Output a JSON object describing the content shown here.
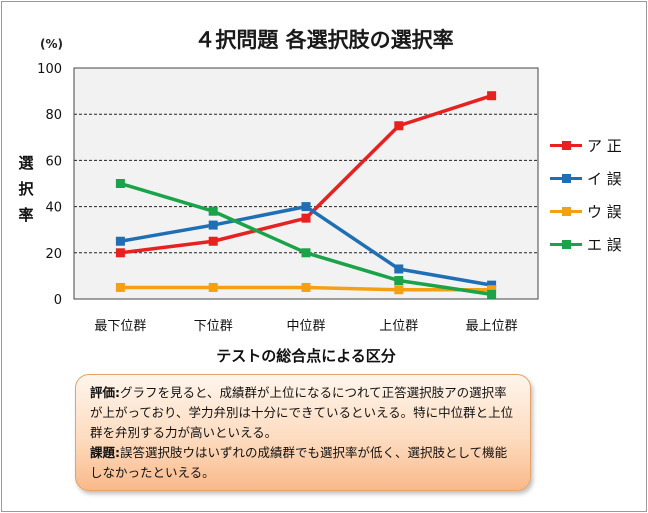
{
  "chart_data": {
    "type": "line",
    "title": "４択問題 各選択肢の選択率",
    "y_unit": "(%)",
    "ylabel": "選択率",
    "xlabel": "テストの総合点による区分",
    "categories": [
      "最下位群",
      "下位群",
      "中位群",
      "上位群",
      "最上位群"
    ],
    "ylim": [
      0,
      100
    ],
    "yticks": [
      0,
      20,
      40,
      60,
      80,
      100
    ],
    "grid": true,
    "legend_position": "right",
    "series": [
      {
        "name": "ア 正",
        "color": "#e8201f",
        "values": [
          20,
          25,
          35,
          75,
          88
        ]
      },
      {
        "name": "イ 誤",
        "color": "#1f6fb5",
        "values": [
          25,
          32,
          40,
          13,
          6
        ]
      },
      {
        "name": "ウ 誤",
        "color": "#f5a013",
        "values": [
          5,
          5,
          5,
          4,
          4
        ]
      },
      {
        "name": "エ 誤",
        "color": "#1aa348",
        "values": [
          50,
          38,
          20,
          8,
          2
        ]
      }
    ]
  },
  "note": {
    "eval_label": "評価:",
    "eval_text": "グラフを見ると、成績群が上位になるにつれて正答選択肢アの選択率が上がっており、学力弁別は十分にできているといえる。特に中位群と上位群を弁別する力が高いといえる。",
    "issue_label": "課題:",
    "issue_text": "誤答選択肢ウはいずれの成績群でも選択率が低く、選択肢として機能しなかったといえる。"
  }
}
